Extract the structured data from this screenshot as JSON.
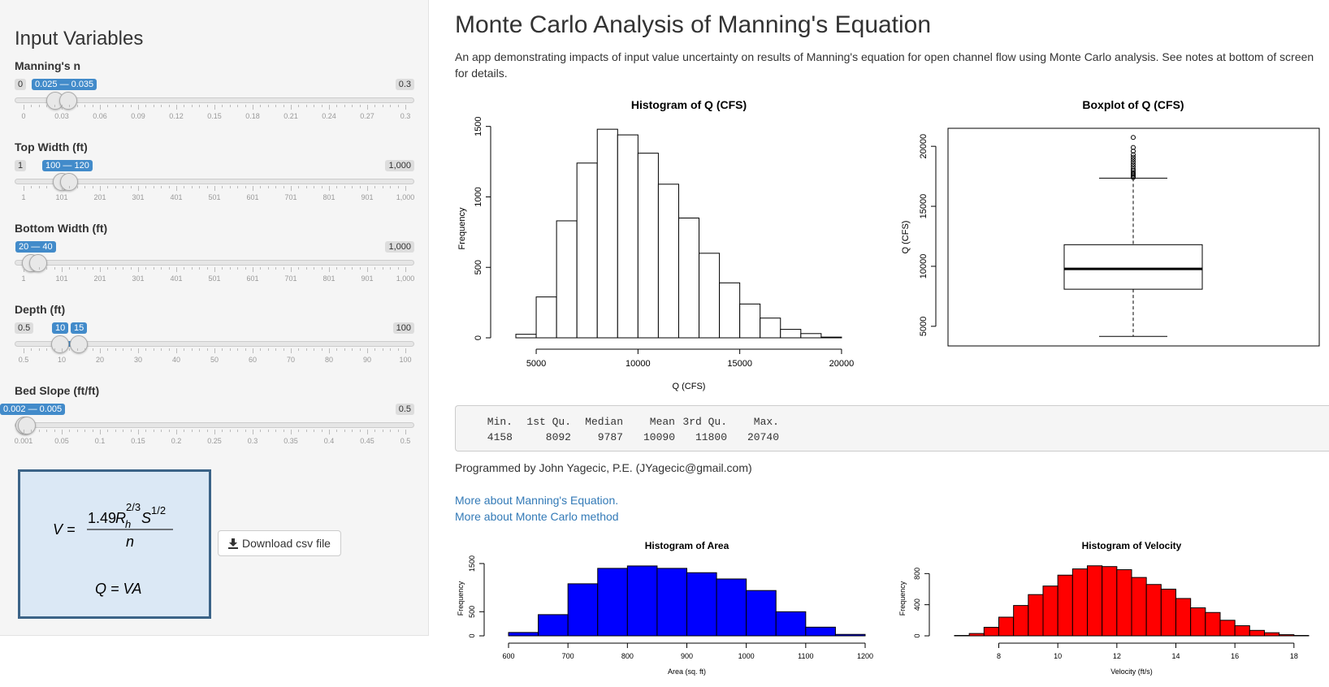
{
  "sidebar": {
    "title": "Input Variables",
    "sliders": [
      {
        "label": "Manning's n",
        "min_label": "0",
        "max_label": "0.3",
        "range_label": "0.025 — 0.035",
        "ticks": [
          "0",
          "0.03",
          "0.06",
          "0.09",
          "0.12",
          "0.15",
          "0.18",
          "0.21",
          "0.24",
          "0.27",
          "0.3"
        ],
        "value_low": 0.025,
        "value_high": 0.035,
        "min": 0,
        "max": 0.3
      },
      {
        "label": "Top Width (ft)",
        "min_label": "1",
        "max_label": "1,000",
        "range_label": "100 — 120",
        "ticks": [
          "1",
          "101",
          "201",
          "301",
          "401",
          "501",
          "601",
          "701",
          "801",
          "901",
          "1,000"
        ],
        "value_low": 100,
        "value_high": 120,
        "min": 1,
        "max": 1000
      },
      {
        "label": "Bottom Width (ft)",
        "min_label": "1",
        "max_label": "1,000",
        "range_label": "20 — 40",
        "ticks": [
          "1",
          "101",
          "201",
          "301",
          "401",
          "501",
          "601",
          "701",
          "801",
          "901",
          "1,000"
        ],
        "value_low": 20,
        "value_high": 40,
        "min": 1,
        "max": 1000
      },
      {
        "label": "Depth (ft)",
        "min_label": "0.5",
        "max_label": "100",
        "low_label": "10",
        "high_label": "15",
        "ticks": [
          "0.5",
          "10",
          "20",
          "30",
          "40",
          "50",
          "60",
          "70",
          "80",
          "90",
          "100"
        ],
        "value_low": 10,
        "value_high": 15,
        "min": 0.5,
        "max": 100
      },
      {
        "label": "Bed Slope (ft/ft)",
        "min_label": "0.001",
        "max_label": "0.5",
        "range_label": "0.002 — 0.005",
        "ticks": [
          "0.001",
          "0.05",
          "0.1",
          "0.15",
          "0.2",
          "0.25",
          "0.3",
          "0.35",
          "0.4",
          "0.45",
          "0.5"
        ],
        "value_low": 0.002,
        "value_high": 0.005,
        "min": 0.001,
        "max": 0.5
      }
    ],
    "equation": {
      "v_lhs": "V =",
      "numerator": "1.49",
      "rh": "R",
      "rh_sub": "h",
      "rh_exp": "2/3",
      "s": "S",
      "s_exp": "1/2",
      "denominator": "n",
      "q_line": "Q = VA"
    },
    "download_label": "Download csv file",
    "download_icon": "download-icon"
  },
  "main": {
    "title": "Monte Carlo Analysis of Manning's Equation",
    "description": "An app demonstrating impacts of input value uncertainty on results of Manning's equation for open channel flow using Monte Carlo analysis. See notes at bottom of screen for details.",
    "stats": {
      "headers": [
        "Min.",
        "1st Qu.",
        "Median",
        "Mean",
        "3rd Qu.",
        "Max."
      ],
      "values": [
        "4158",
        "8092",
        "9787",
        "10090",
        "11800",
        "20740"
      ]
    },
    "credit": "Programmed by John Yagecic, P.E. (JYagecic@gmail.com)",
    "links": [
      "More about Manning's Equation.",
      "More about Monte Carlo method"
    ]
  },
  "chart_data": [
    {
      "type": "bar",
      "title": "Histogram of Q (CFS)",
      "xlabel": "Q (CFS)",
      "ylabel": "Frequency",
      "bin_start": 4000,
      "bin_width": 1000,
      "values": [
        25,
        290,
        830,
        1240,
        1480,
        1440,
        1310,
        1090,
        850,
        600,
        390,
        240,
        140,
        60,
        30,
        5
      ],
      "xticks": [
        5000,
        10000,
        15000,
        20000
      ],
      "yticks": [
        0,
        500,
        1000,
        1500
      ],
      "xlim": [
        4000,
        21000
      ],
      "ylim": [
        0,
        1550
      ],
      "color": "#ffffff"
    },
    {
      "type": "boxplot",
      "title": "Boxplot of Q (CFS)",
      "ylabel": "Q (CFS)",
      "lower_whisker": 4158,
      "q1": 8092,
      "median": 9787,
      "q3": 11800,
      "upper_whisker": 17350,
      "outliers": [
        17400,
        17500,
        17600,
        17700,
        17800,
        17950,
        18100,
        18300,
        18500,
        18700,
        18900,
        19100,
        19300,
        19600,
        19900,
        20740
      ],
      "yticks": [
        5000,
        10000,
        15000,
        20000
      ],
      "ylim": [
        3500,
        21500
      ]
    },
    {
      "type": "bar",
      "title": "Histogram of Area",
      "xlabel": "Area (sq. ft)",
      "ylabel": "Frequency",
      "bin_start": 600,
      "bin_width": 50,
      "values": [
        70,
        440,
        1080,
        1400,
        1450,
        1400,
        1310,
        1180,
        940,
        500,
        180,
        30
      ],
      "xticks": [
        600,
        700,
        800,
        900,
        1000,
        1100,
        1200
      ],
      "yticks": [
        0,
        500,
        1500
      ],
      "xlim": [
        600,
        1200
      ],
      "ylim": [
        0,
        1550
      ],
      "color": "#0000ff"
    },
    {
      "type": "bar",
      "title": "Histogram of Velocity",
      "xlabel": "Velocity (ft/s)",
      "ylabel": "Frequency",
      "bin_start": 6.5,
      "bin_width": 0.5,
      "values": [
        5,
        30,
        110,
        240,
        390,
        530,
        640,
        780,
        860,
        900,
        890,
        850,
        750,
        660,
        600,
        480,
        360,
        300,
        200,
        130,
        70,
        40,
        15,
        5
      ],
      "xticks": [
        8,
        10,
        12,
        14,
        16,
        18
      ],
      "yticks": [
        0,
        400,
        800
      ],
      "xlim": [
        6.5,
        18.5
      ],
      "ylim": [
        0,
        960
      ],
      "color": "#ff0000"
    }
  ]
}
